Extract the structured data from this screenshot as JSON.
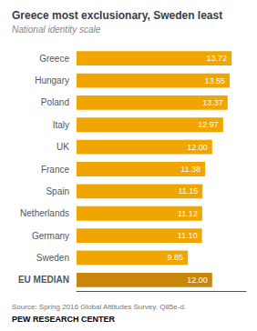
{
  "chart_data": {
    "type": "bar",
    "orientation": "horizontal",
    "title": "Greece most exclusionary, Sweden least",
    "subtitle": "National identity scale",
    "annotations": [
      "Source: Spring 2016 Global Attitudes Survey. Q85e-d.",
      "PEW RESEARCH CENTER"
    ],
    "categories": [
      "Greece",
      "Hungary",
      "Poland",
      "Italy",
      "UK",
      "France",
      "Spain",
      "Netherlands",
      "Germany",
      "Sweden",
      "EU MEDIAN"
    ],
    "values": [
      13.72,
      13.55,
      13.37,
      12.97,
      12.0,
      11.38,
      11.15,
      11.12,
      11.1,
      9.85,
      12.0
    ],
    "value_labels": [
      "13.72",
      "13.55",
      "13.37",
      "12.97",
      "12.00",
      "11.38",
      "11.15",
      "11.12",
      "11.10",
      "9.85",
      "12.00"
    ],
    "colors": [
      "#F0A500",
      "#F0A500",
      "#F0A500",
      "#F0A500",
      "#F0A500",
      "#F0A500",
      "#F0A500",
      "#F0A500",
      "#F0A500",
      "#F0A500",
      "#C8860A"
    ],
    "xlim": [
      0,
      15
    ],
    "data_labels": true,
    "tick_labels": "y",
    "grid": false
  }
}
